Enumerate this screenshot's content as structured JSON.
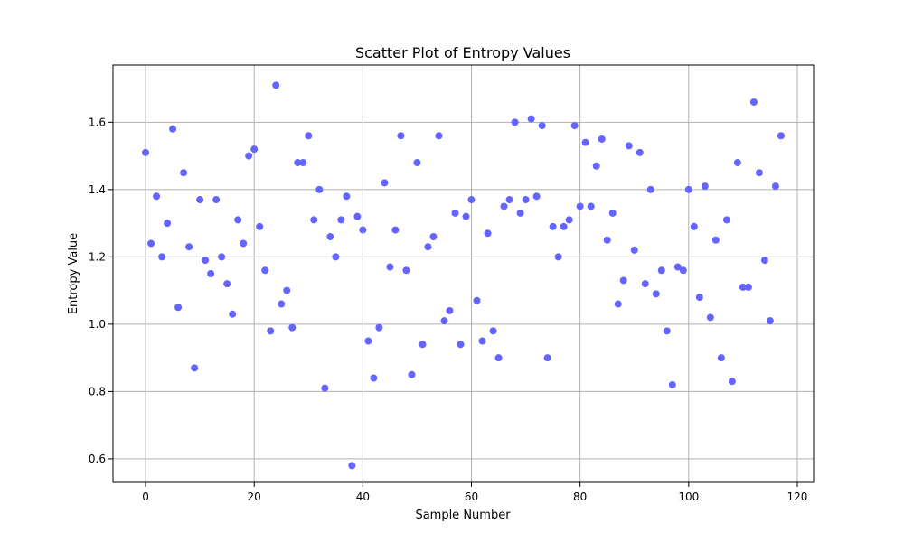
{
  "chart_data": {
    "type": "scatter",
    "title": "Scatter Plot of Entropy Values",
    "xlabel": "Sample Number",
    "ylabel": "Entropy Value",
    "xlim": [
      -6,
      123
    ],
    "ylim": [
      0.53,
      1.77
    ],
    "xticks": [
      0,
      20,
      40,
      60,
      80,
      100,
      120
    ],
    "yticks": [
      0.6,
      0.8,
      1.0,
      1.2,
      1.4,
      1.6
    ],
    "ytick_labels": [
      "0.6",
      "0.8",
      "1.0",
      "1.2",
      "1.4",
      "1.6"
    ],
    "grid": true,
    "marker_color": "#6464ff",
    "series": [
      {
        "x": [
          0,
          1,
          2,
          3,
          4,
          5,
          6,
          7,
          8,
          9,
          10,
          11,
          12,
          13,
          14,
          15,
          16,
          17,
          18,
          19,
          20,
          21,
          22,
          23,
          24,
          25,
          26,
          27,
          28,
          29,
          30,
          31,
          32,
          33,
          34,
          35,
          36,
          37,
          38,
          39,
          40,
          41,
          42,
          43,
          44,
          45,
          46,
          47,
          48,
          49,
          50,
          51,
          52,
          53,
          54,
          55,
          56,
          57,
          58,
          59,
          60,
          61,
          62,
          63,
          64,
          65,
          66,
          67,
          68,
          69,
          70,
          71,
          72,
          73,
          74,
          75,
          76,
          77,
          78,
          79,
          80,
          81,
          82,
          83,
          84,
          85,
          86,
          87,
          88,
          89,
          90,
          91,
          92,
          93,
          94,
          95,
          96,
          97,
          98,
          99,
          100,
          101,
          102,
          103,
          104,
          105,
          106,
          107,
          108,
          109,
          110,
          111,
          112,
          113,
          114,
          115,
          116,
          117
        ],
        "y": [
          1.51,
          1.24,
          1.38,
          1.2,
          1.3,
          1.58,
          1.05,
          1.45,
          1.23,
          0.87,
          1.37,
          1.19,
          1.15,
          1.37,
          1.2,
          1.12,
          1.03,
          1.31,
          1.24,
          1.5,
          1.52,
          1.29,
          1.16,
          0.98,
          1.71,
          1.06,
          1.1,
          0.99,
          1.48,
          1.48,
          1.56,
          1.31,
          1.4,
          0.81,
          1.26,
          1.2,
          1.31,
          1.38,
          0.58,
          1.32,
          1.28,
          0.95,
          0.84,
          0.99,
          1.42,
          1.17,
          1.28,
          1.56,
          1.16,
          0.85,
          1.48,
          0.94,
          1.23,
          1.26,
          1.56,
          1.01,
          1.04,
          1.33,
          0.94,
          1.32,
          1.37,
          1.07,
          0.95,
          1.27,
          0.98,
          0.9,
          1.35,
          1.37,
          1.6,
          1.33,
          1.37,
          1.61,
          1.38,
          1.59,
          0.9,
          1.29,
          1.2,
          1.29,
          1.31,
          1.59,
          1.35,
          1.54,
          1.35,
          1.47,
          1.55,
          1.25,
          1.33,
          1.06,
          1.13,
          1.53,
          1.22,
          1.51,
          1.12,
          1.4,
          1.09,
          1.16,
          0.98,
          0.82,
          1.17,
          1.16,
          1.4,
          1.29,
          1.08,
          1.41,
          1.02,
          1.25,
          0.9,
          1.31,
          0.83,
          1.48,
          1.11,
          1.11,
          1.66,
          1.45,
          1.19,
          1.01,
          1.41,
          1.56
        ]
      }
    ]
  }
}
